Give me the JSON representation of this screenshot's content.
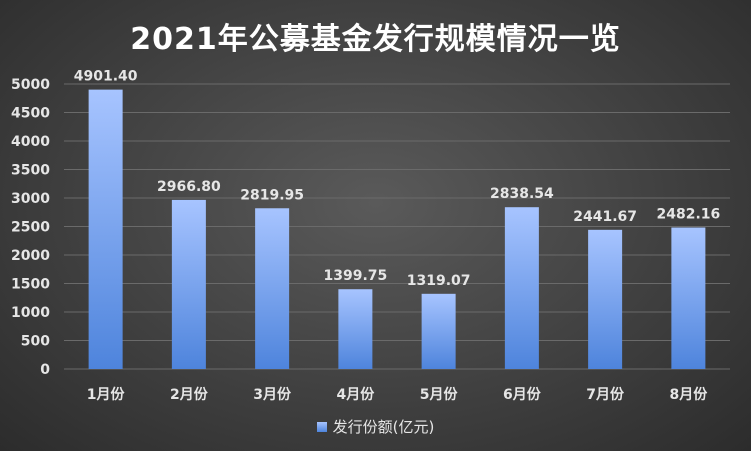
{
  "chart_data": {
    "type": "bar",
    "title": "2021年公募基金发行规模情况一览",
    "categories": [
      "1月份",
      "2月份",
      "3月份",
      "4月份",
      "5月份",
      "6月份",
      "7月份",
      "8月份"
    ],
    "series": [
      {
        "name": "发行份额(亿元)",
        "values": [
          4901.4,
          2966.8,
          2819.95,
          1399.75,
          1319.07,
          2838.54,
          2441.67,
          2482.16
        ],
        "labels": [
          "4901.40",
          "2966.80",
          "2819.95",
          "1399.75",
          "1319.07",
          "2838.54",
          "2441.67",
          "2482.16"
        ]
      }
    ],
    "ylim": [
      0,
      5000
    ],
    "yticks": [
      0,
      500,
      1000,
      1500,
      2000,
      2500,
      3000,
      3500,
      4000,
      4500,
      5000
    ],
    "grid": true,
    "legend_position": "bottom",
    "colors": {
      "bar_top": "#a7c4ff",
      "bar_bottom": "#4e84dc",
      "grid": "#6a6a6a",
      "text": "#e6e6e6"
    }
  }
}
